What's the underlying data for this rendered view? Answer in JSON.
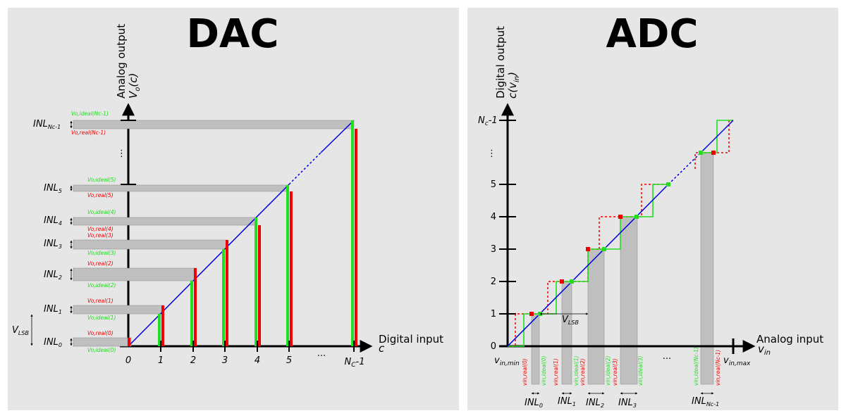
{
  "dac": {
    "title": "DAC",
    "y_axis_label": "Analog output",
    "y_axis_func": "V",
    "y_axis_func_sub": "o",
    "y_axis_func_arg": "(c)",
    "x_axis_label": "Digital input",
    "x_axis_var": "c",
    "x_ticks": [
      "0",
      "1",
      "2",
      "3",
      "4",
      "5",
      "...",
      "N"
    ],
    "x_tick_last_sub": "C",
    "x_tick_last_suffix": "-1",
    "vlsb": "V",
    "vlsb_sub": "LSB",
    "vdots": "⋮",
    "inl_prefix": "INL",
    "inl_subs": [
      "0",
      "1",
      "2",
      "3",
      "4",
      "5",
      "Nc-1"
    ],
    "ideal_labels": [
      "Vo,ideal(0)",
      "Vo,ideal(1)",
      "Vo,ideal(2)",
      "Vo,ideal(3)",
      "Vo,ideal(4)",
      "Vo,ideal(5)",
      "Vo,ideal(Nc-1)"
    ],
    "real_labels": [
      "Vo,real(0)",
      "Vo,real(1)",
      "Vo,real(2)",
      "Vo,real(3)",
      "Vo,real(4)",
      "Vo,real(5)",
      "Vo,real(Nc-1)"
    ]
  },
  "adc": {
    "title": "ADC",
    "y_axis_label": "Digital output",
    "y_axis_func": "c(v",
    "y_axis_func_sub": "in",
    "y_axis_func_end": ")",
    "x_axis_label": "Analog input",
    "x_axis_var": "v",
    "x_axis_var_sub": "in",
    "y_ticks": [
      "0",
      "1",
      "2",
      "3",
      "4",
      "5",
      "⋮",
      "N"
    ],
    "y_tick_last_sub": "c",
    "y_tick_last_suffix": "-1",
    "vin_min": "v",
    "vin_min_sub": "in,min",
    "vin_max": "v",
    "vin_max_sub": "in,max",
    "x_dots": "...",
    "vlsb": "V",
    "vlsb_sub": "LSB",
    "inl_prefix": "INL",
    "inl_subs": [
      "0",
      "1",
      "2",
      "3",
      "Nc-1"
    ],
    "ideal_labels": [
      "vin,ideal(0)",
      "vin,ideal(1)",
      "vin,ideal(2)",
      "vin,ideal(3)",
      "vin,ideal(Nc-1)"
    ],
    "real_labels": [
      "vin,real(0)",
      "vin,real(1)",
      "vin,real(2)",
      "vin,real(3)",
      "vin,real(Nc-1)"
    ]
  },
  "colors": {
    "panel_bg": "#e6e6e6",
    "ideal": "#22dd22",
    "real": "#ee0000",
    "line": "#0000dd",
    "band": "#bfbfbf"
  }
}
